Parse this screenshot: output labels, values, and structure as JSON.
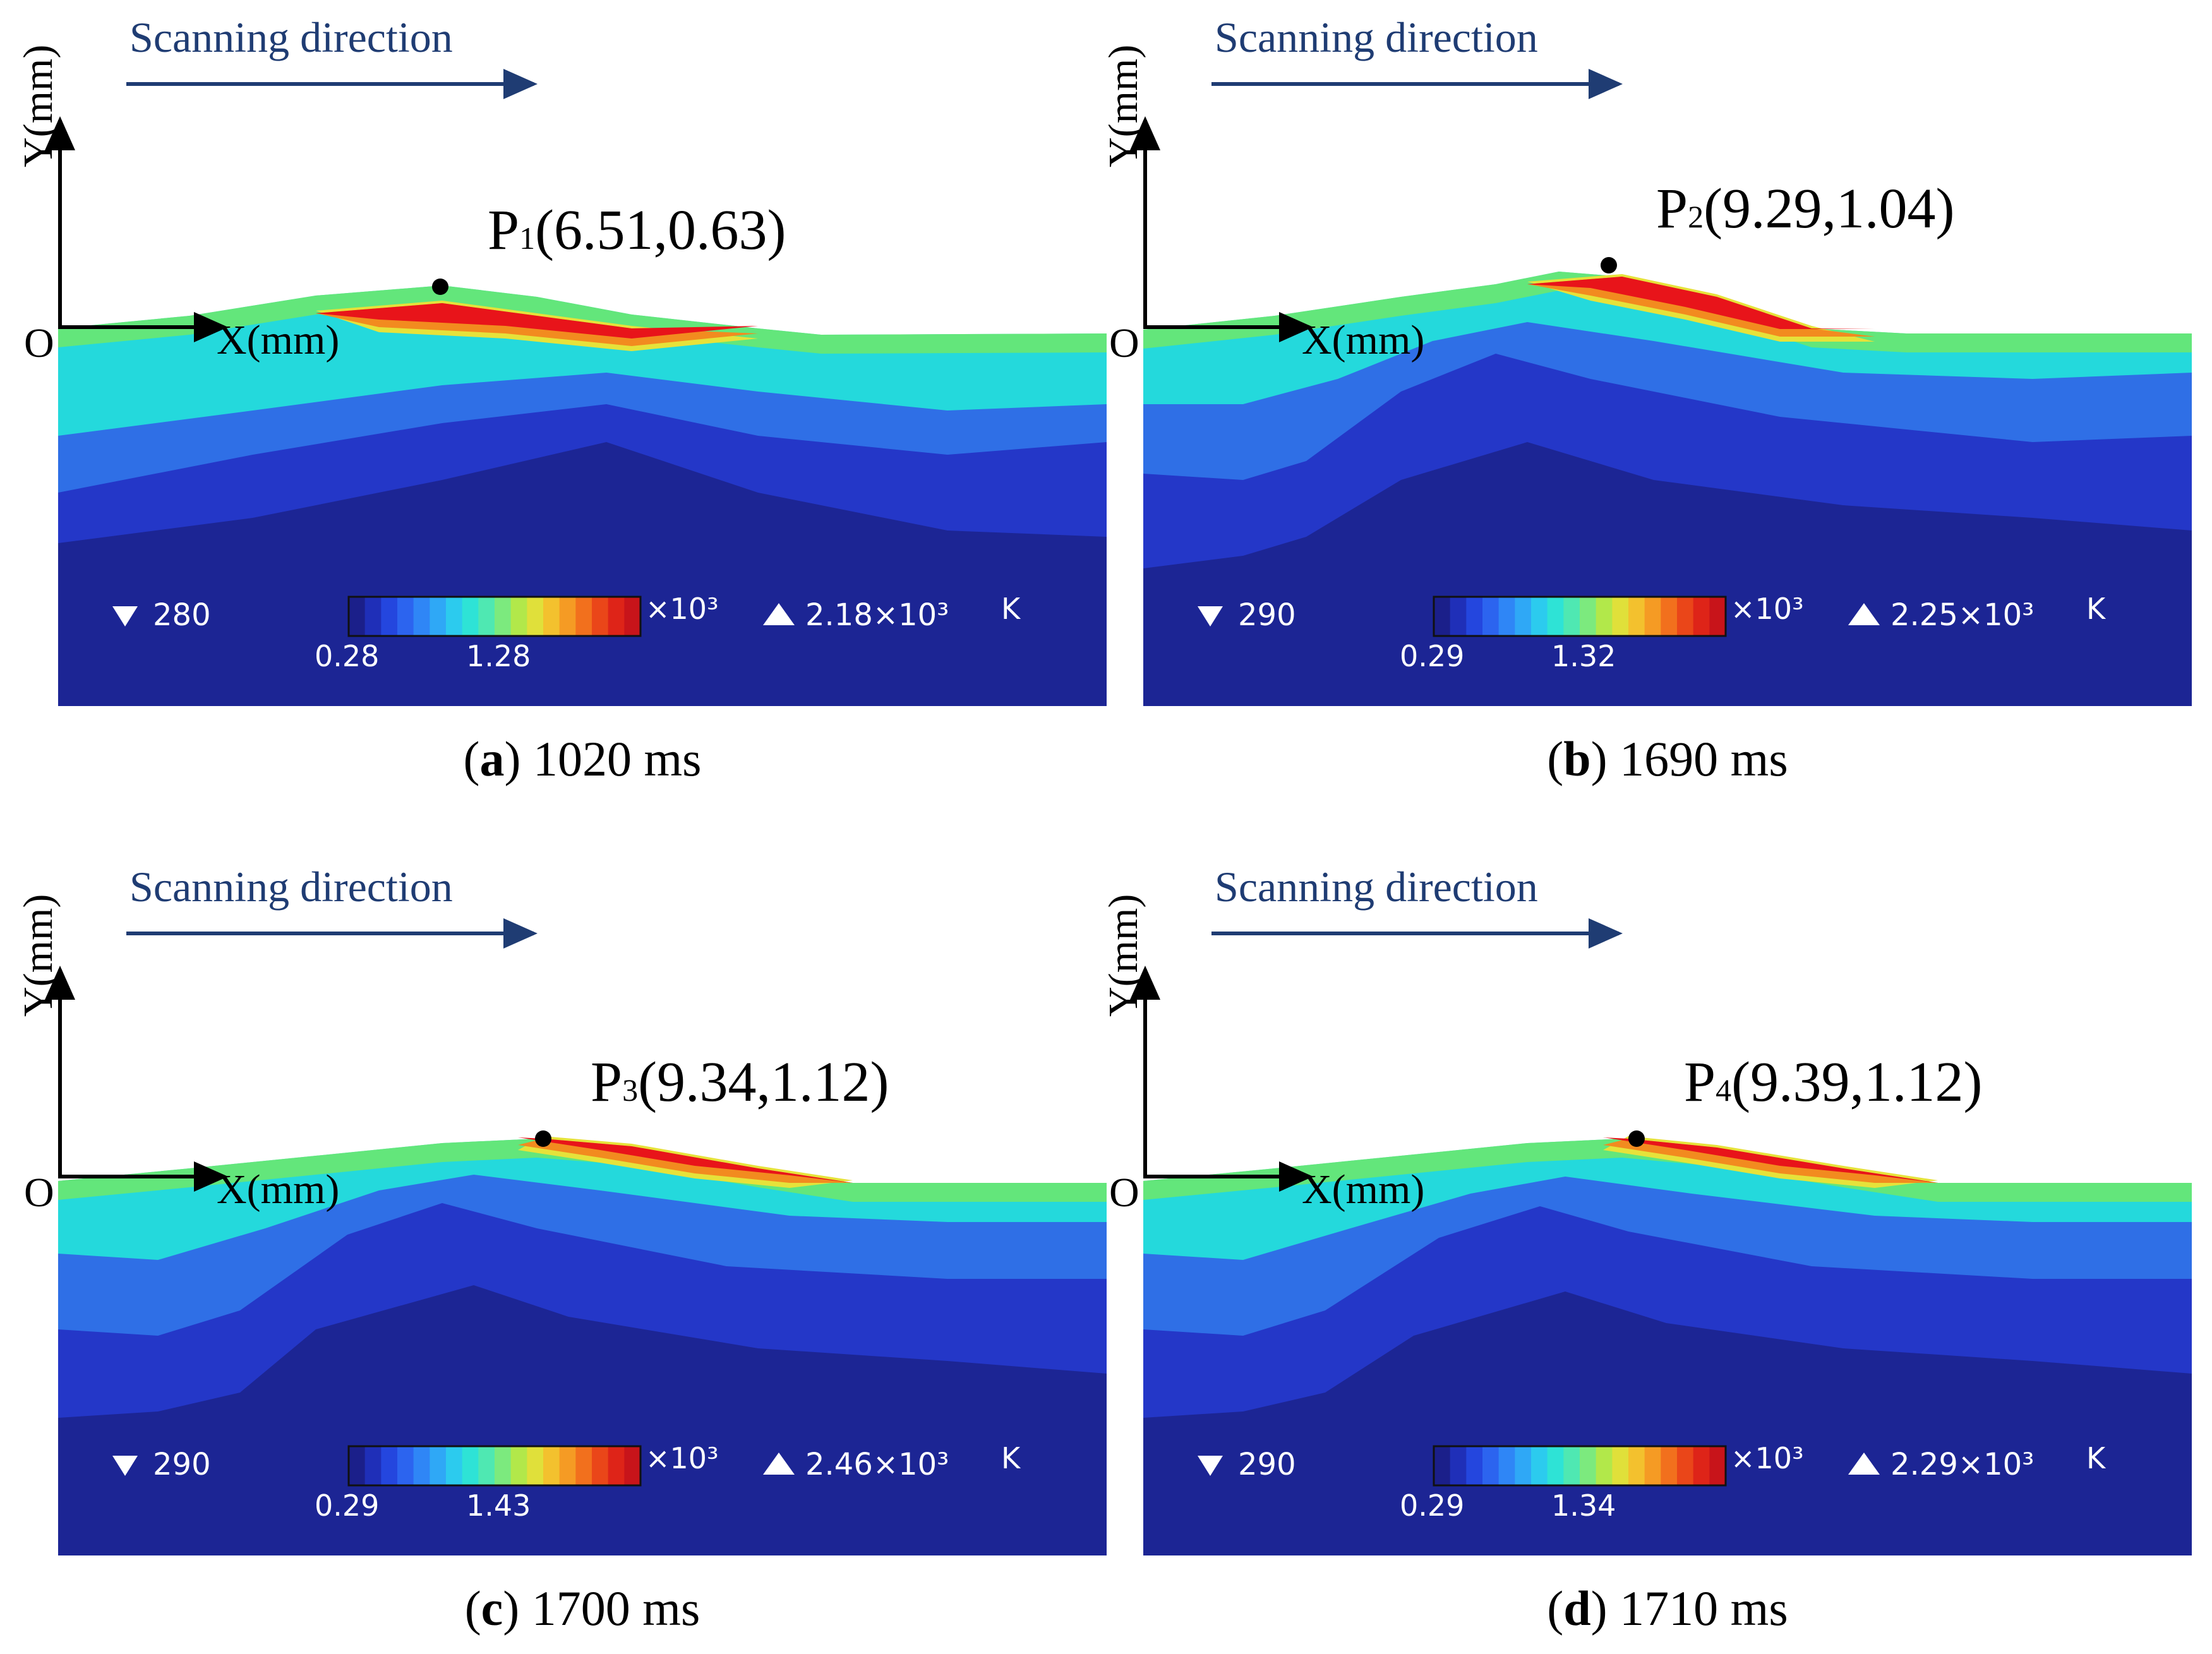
{
  "figure": {
    "scanning_label": "Scanning direction",
    "axis_y_label": "Y(mm)",
    "axis_x_label": "X(mm)",
    "origin_label": "O",
    "legend_exponent": "×10³",
    "legend_unit": "K",
    "colors": {
      "arrow": "#1f3c73",
      "band_deep": "#1c2594",
      "band_mid": "#2437c8",
      "band_light": "#2f6fe6",
      "band_cyan": "#24d9dc",
      "band_green": "#6fe86a",
      "band_yellow": "#e6e23a",
      "band_orange": "#f28b1f",
      "band_red": "#e8141a"
    }
  },
  "panels": [
    {
      "id": "a",
      "caption_letter": "a",
      "caption_time": "1020 ms",
      "point_letter": "P",
      "point_sub": "1",
      "point_coords": "(6.51,0.63)",
      "point_x_mm": 6.51,
      "point_y_mm": 0.63,
      "min_label": "280",
      "max_label": "2.18×10³",
      "scale_low": "0.28",
      "scale_mid": "1.28"
    },
    {
      "id": "b",
      "caption_letter": "b",
      "caption_time": "1690 ms",
      "point_letter": "P",
      "point_sub": "2",
      "point_coords": "(9.29,1.04)",
      "point_x_mm": 9.29,
      "point_y_mm": 1.04,
      "min_label": "290",
      "max_label": "2.25×10³",
      "scale_low": "0.29",
      "scale_mid": "1.32"
    },
    {
      "id": "c",
      "caption_letter": "c",
      "caption_time": "1700 ms",
      "point_letter": "P",
      "point_sub": "3",
      "point_coords": "(9.34,1.12)",
      "point_x_mm": 9.34,
      "point_y_mm": 1.12,
      "min_label": "290",
      "max_label": "2.46×10³",
      "scale_low": "0.29",
      "scale_mid": "1.43"
    },
    {
      "id": "d",
      "caption_letter": "d",
      "caption_time": "1710 ms",
      "point_letter": "P",
      "point_sub": "4",
      "point_coords": "(9.39,1.12)",
      "point_x_mm": 9.39,
      "point_y_mm": 1.12,
      "min_label": "290",
      "max_label": "2.29×10³",
      "scale_low": "0.29",
      "scale_mid": "1.34"
    }
  ]
}
